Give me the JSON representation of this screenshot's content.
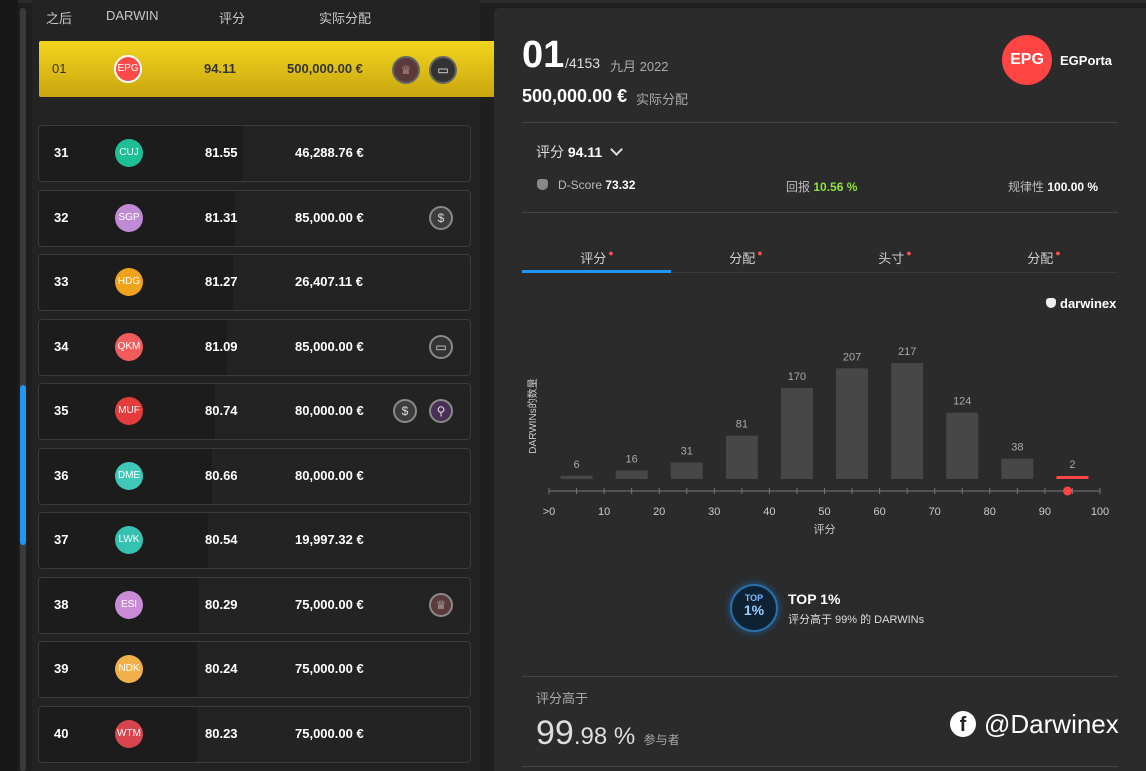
{
  "colors": {
    "accent_blue": "#2196f3",
    "selected_gold": "#e8c31a",
    "green": "#8be23a",
    "red": "#ff4444",
    "bar": "#474747"
  },
  "list": {
    "headers": [
      "之后",
      "DARWIN",
      "评分",
      "实际分配"
    ],
    "selected": {
      "rank": "01",
      "code": "EPG",
      "color": "#ff4a4a",
      "score": "94.11",
      "alloc": "500,000.00 €",
      "icons": [
        "medal-icon",
        "cash-icon"
      ]
    },
    "rows": [
      {
        "rank": "31",
        "code": "CUJ",
        "color": "#1fbf95",
        "score": "81.55",
        "alloc": "46,288.76 €",
        "icons": []
      },
      {
        "rank": "32",
        "code": "SGP",
        "color": "#c08ad4",
        "score": "81.31",
        "alloc": "85,000.00 €",
        "icons": [
          "dollar-icon"
        ]
      },
      {
        "rank": "33",
        "code": "HDG",
        "color": "#f0a21a",
        "score": "81.27",
        "alloc": "26,407.11 €",
        "icons": []
      },
      {
        "rank": "34",
        "code": "QKM",
        "color": "#f25c5c",
        "score": "81.09",
        "alloc": "85,000.00 €",
        "icons": [
          "cash-icon"
        ]
      },
      {
        "rank": "35",
        "code": "MUF",
        "color": "#e43b3b",
        "score": "80.74",
        "alloc": "80,000.00 €",
        "icons": [
          "dollar-icon",
          "link-icon"
        ]
      },
      {
        "rank": "36",
        "code": "DME",
        "color": "#3fc8b8",
        "score": "80.66",
        "alloc": "80,000.00 €",
        "icons": []
      },
      {
        "rank": "37",
        "code": "LWK",
        "color": "#35c2b0",
        "score": "80.54",
        "alloc": "19,997.32 €",
        "icons": []
      },
      {
        "rank": "38",
        "code": "ESI",
        "color": "#c98ad6",
        "score": "80.29",
        "alloc": "75,000.00 €",
        "icons": [
          "medal-icon"
        ]
      },
      {
        "rank": "39",
        "code": "NDK",
        "color": "#f0b14a",
        "score": "80.24",
        "alloc": "75,000.00 €",
        "icons": []
      },
      {
        "rank": "40",
        "code": "WTM",
        "color": "#d8454f",
        "score": "80.23",
        "alloc": "75,000.00 €",
        "icons": []
      }
    ]
  },
  "detail": {
    "rank": "01",
    "total": "/4153",
    "date": "九月 2022",
    "alloc_value": "500,000.00 €",
    "alloc_label": "实际分配",
    "badge": "EPG",
    "name": "EGPorta",
    "score_label": "评分",
    "score_value": "94.11",
    "dscore_label": "D-Score",
    "dscore_value": "73.32",
    "return_label": "回报",
    "return_value": "10.56 %",
    "regularity_label": "规律性",
    "regularity_value": "100.00 %",
    "tabs": [
      "评分",
      "分配",
      "头寸",
      "分配"
    ],
    "brand": "darwinex",
    "top_badge_line1": "TOP",
    "top_badge_line2": "1%",
    "top_title": "TOP 1%",
    "top_sub": "评分高于 99% 的 DARWINs",
    "above_label": "评分高于",
    "above_big": "99",
    "above_small": ".98 %",
    "above_unit": "参与者"
  },
  "chart_data": {
    "type": "bar",
    "categories": [
      "0-10",
      "10-20",
      "20-30",
      "30-40",
      "40-50",
      "50-60",
      "60-70",
      "70-80",
      "80-90",
      "90-100"
    ],
    "values": [
      6,
      16,
      31,
      81,
      170,
      207,
      217,
      124,
      38,
      2
    ],
    "x_ticks": [
      ">0",
      "10",
      "20",
      "30",
      "40",
      "50",
      "60",
      "70",
      "80",
      "90",
      "100"
    ],
    "xlabel": "评分",
    "ylabel": "DARWINs的数量",
    "marker_value": 94.11,
    "highlight_index": 9
  },
  "watermark": "@Darwinex"
}
